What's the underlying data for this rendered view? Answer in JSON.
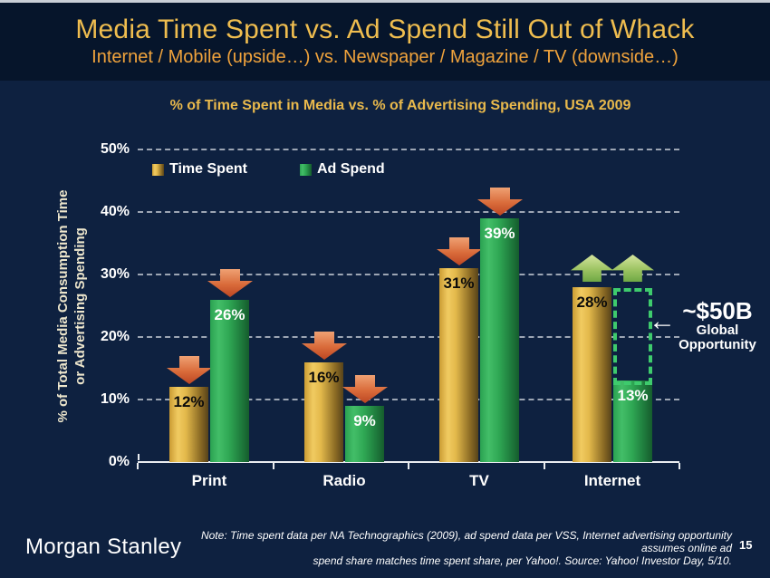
{
  "slide": {
    "title": "Media Time Spent vs. Ad Spend Still Out of Whack",
    "subtitle": "Internet / Mobile (upside…) vs. Newspaper / Magazine / TV (downside…)"
  },
  "chart_data": {
    "type": "bar",
    "title": "% of Time Spent in Media vs. % of Advertising Spending, USA 2009",
    "ylabel": "% of Total Media Consumption Time or Advertising Spending",
    "ylabel_lines": [
      "% of Total Media Consumption Time",
      "or Advertising Spending"
    ],
    "categories": [
      "Print",
      "Radio",
      "TV",
      "Internet"
    ],
    "series": [
      {
        "name": "Time Spent",
        "color_key": "gold",
        "label_color": "#0B0B0B",
        "values": [
          12,
          16,
          31,
          28
        ]
      },
      {
        "name": "Ad Spend",
        "color_key": "green",
        "label_color": "#FFFFFF",
        "values": [
          26,
          9,
          39,
          13
        ]
      }
    ],
    "yticks": [
      "0%",
      "10%",
      "20%",
      "30%",
      "40%",
      "50%"
    ],
    "ylim": [
      0,
      50
    ],
    "grid": "dashed horizontal",
    "legend_position": "top-left",
    "trend_arrows": [
      [
        "down",
        "down"
      ],
      [
        "down",
        "down"
      ],
      [
        "down",
        "down"
      ],
      [
        "up",
        "up"
      ]
    ]
  },
  "annotation": {
    "value": "~$50B",
    "line1": "Global",
    "line2": "Opportunity",
    "arrow_glyph": "←",
    "box_category": "Internet"
  },
  "footer": {
    "logo": "Morgan Stanley",
    "note_line1": "Note: Time spent data per NA Technographics (2009), ad spend data per VSS, Internet advertising opportunity assumes online ad",
    "note_line2": "spend share matches time spent share, per Yahoo!. Source: Yahoo! Investor Day, 5/10.",
    "page_number": "15"
  },
  "colors": {
    "background": "#0E2140",
    "banner": "#06152B",
    "title_gold": "#EFBD4F",
    "subtitle_orange": "#F0A33C",
    "bar_gold": "#E3B94B",
    "bar_green": "#2FA854",
    "arrow_red": "#D96B3A",
    "arrow_green": "#9DC463",
    "opportunity_box": "#3ECB6D"
  }
}
